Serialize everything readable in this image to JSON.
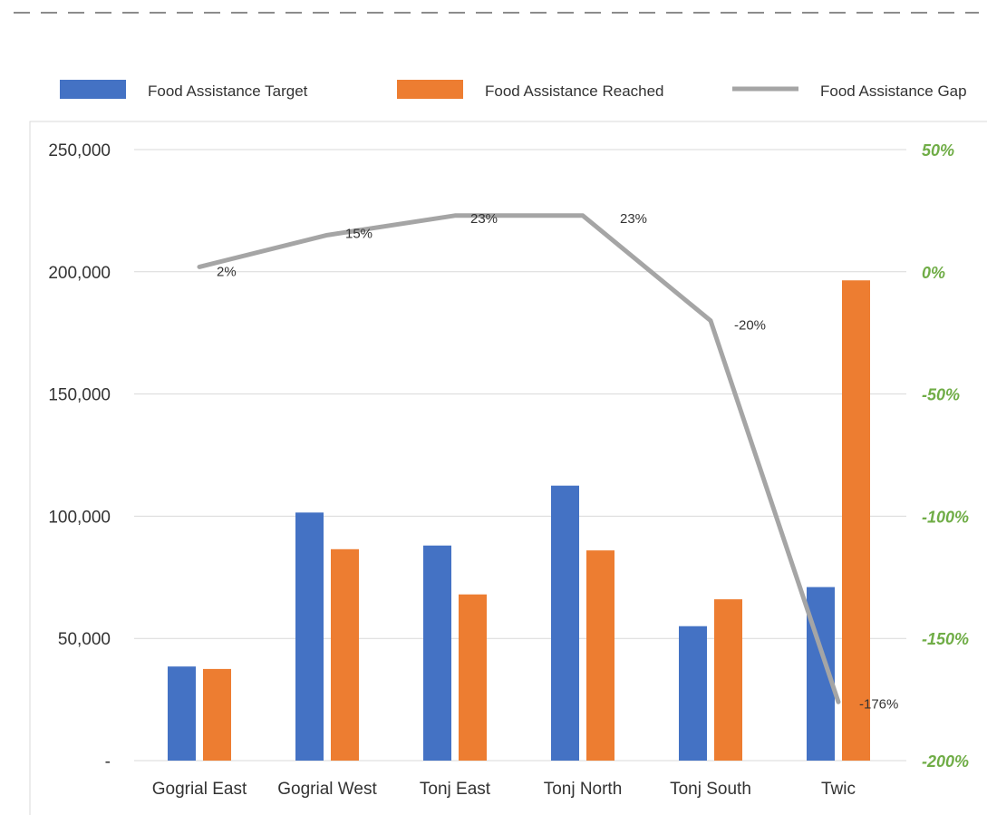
{
  "chart_data": {
    "type": "bar",
    "categories": [
      "Gogrial East",
      "Gogrial West",
      "Tonj East",
      "Tonj North",
      "Tonj South",
      "Twic"
    ],
    "series": [
      {
        "name": "Food Assistance Target",
        "kind": "bar",
        "axis": "left",
        "color": "#4472c4",
        "values": [
          38500,
          101500,
          88000,
          112500,
          55000,
          71000
        ]
      },
      {
        "name": "Food Assistance Reached",
        "kind": "bar",
        "axis": "left",
        "color": "#ed7d31",
        "values": [
          37500,
          86500,
          68000,
          86000,
          66000,
          196500
        ]
      },
      {
        "name": "Food Assistance Gap",
        "kind": "line",
        "axis": "right",
        "color": "#a5a5a5",
        "values": [
          2,
          15,
          23,
          23,
          -20,
          -176
        ],
        "labels": [
          "2%",
          "15%",
          "23%",
          "23%",
          "-20%",
          "-176%"
        ]
      }
    ],
    "y_left": {
      "min": 0,
      "max": 250000,
      "ticks": [
        0,
        50000,
        100000,
        150000,
        200000,
        250000
      ],
      "tick_labels": [
        "-",
        "50,000",
        "100,000",
        "150,000",
        "200,000",
        "250,000"
      ]
    },
    "y_right": {
      "min": -200,
      "max": 50,
      "ticks": [
        -200,
        -150,
        -100,
        -50,
        0,
        50
      ],
      "tick_labels": [
        "-200%",
        "-150%",
        "-100%",
        "-50%",
        "0%",
        "50%"
      ],
      "color": "#70ad47"
    },
    "grid": true,
    "legend_position": "top",
    "title": "",
    "xlabel": "",
    "ylabel": ""
  }
}
